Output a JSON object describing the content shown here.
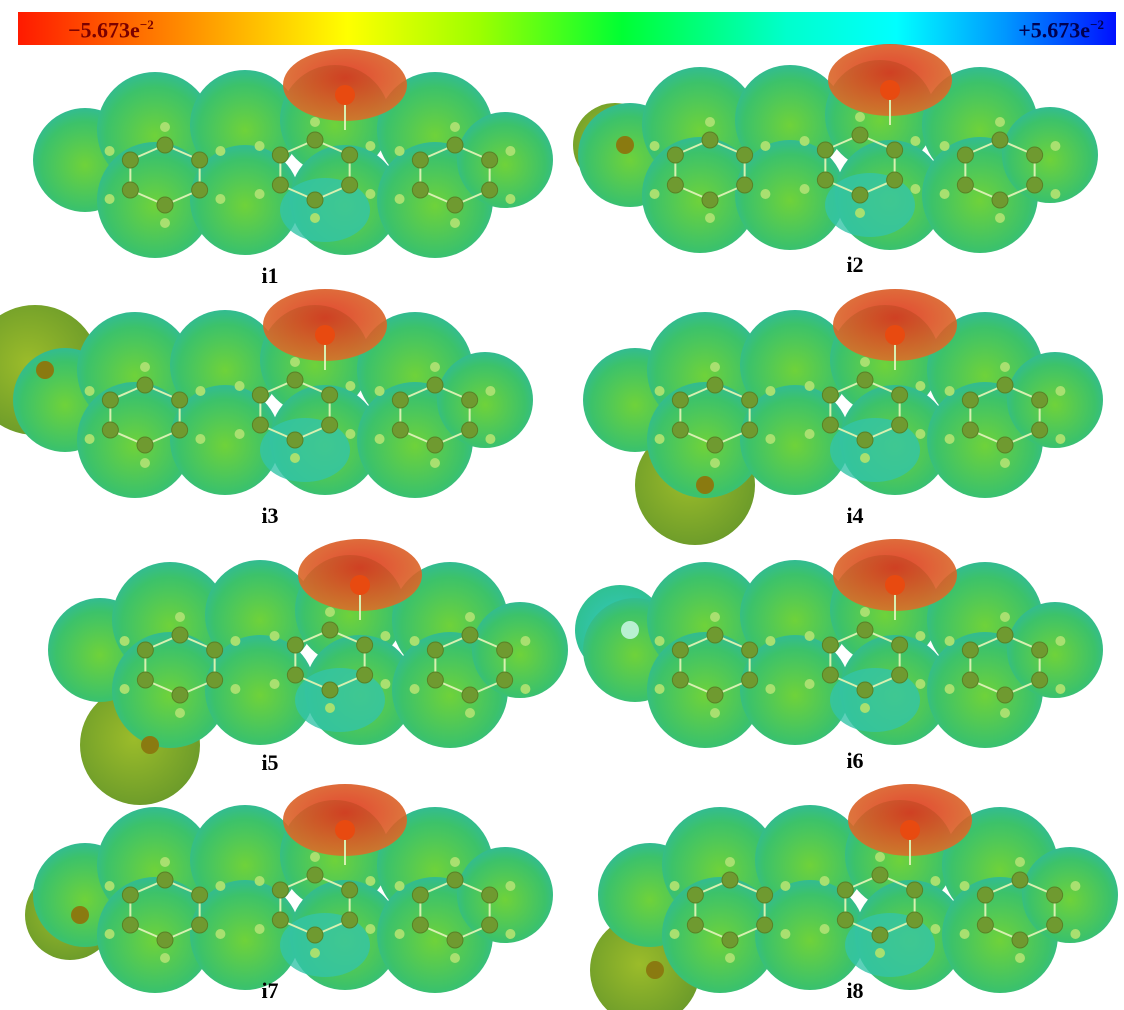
{
  "colorbar": {
    "min": {
      "mantissa": "−5.673e",
      "exponent": "−2"
    },
    "max": {
      "mantissa": "+5.673e",
      "exponent": "−2"
    }
  },
  "panels": [
    {
      "label": "i1"
    },
    {
      "label": "i2"
    },
    {
      "label": "i3"
    },
    {
      "label": "i4"
    },
    {
      "label": "i5"
    },
    {
      "label": "i6"
    },
    {
      "label": "i7"
    },
    {
      "label": "i8"
    }
  ]
}
